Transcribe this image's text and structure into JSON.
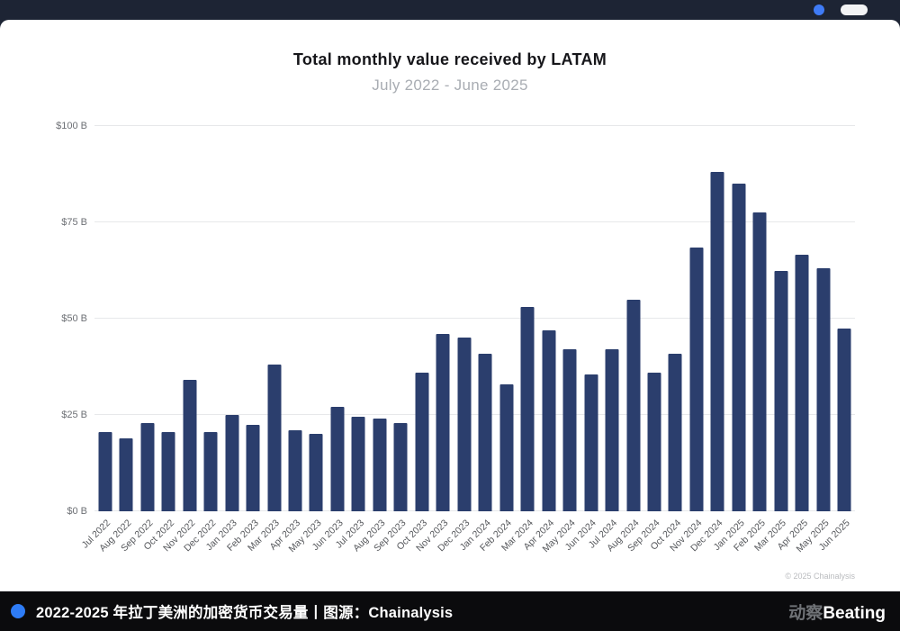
{
  "topbar": {
    "bg": "#1d2434",
    "accent_dot_color": "#3f7bf6"
  },
  "chart_data": {
    "type": "bar",
    "title": "Total monthly value received by LATAM",
    "subtitle": "July 2022 - June 2025",
    "categories": [
      "Jul 2022",
      "Aug 2022",
      "Sep 2022",
      "Oct 2022",
      "Nov 2022",
      "Dec 2022",
      "Jan 2023",
      "Feb 2023",
      "Mar 2023",
      "Apr 2023",
      "May 2023",
      "Jun 2023",
      "Jul 2023",
      "Aug 2023",
      "Sep 2023",
      "Oct 2023",
      "Nov 2023",
      "Dec 2023",
      "Jan 2024",
      "Feb 2024",
      "Mar 2024",
      "Apr 2024",
      "May 2024",
      "Jun 2024",
      "Jul 2024",
      "Aug 2024",
      "Sep 2024",
      "Oct 2024",
      "Nov 2024",
      "Dec 2024",
      "Jan 2025",
      "Feb 2025",
      "Mar 2025",
      "Apr 2025",
      "May 2025",
      "Jun 2025"
    ],
    "values": [
      20.5,
      19,
      23,
      20.5,
      34,
      20.5,
      25,
      22.5,
      38,
      21,
      20,
      27,
      24.5,
      24,
      23,
      36,
      46,
      45,
      41,
      33,
      53,
      47,
      42,
      35.5,
      42,
      55,
      36,
      41,
      68.5,
      88,
      85,
      77.5,
      62.5,
      66.5,
      63,
      47.5
    ],
    "ylim": [
      0,
      100
    ],
    "yticks": [
      0,
      25,
      50,
      75,
      100
    ],
    "ytick_labels": [
      "$0 B",
      "$25 B",
      "$50 B",
      "$75 B",
      "$100 B"
    ],
    "ylabel": "",
    "xlabel": "",
    "grid": true,
    "legend": false,
    "bar_color": "#2b3e6d",
    "source_note": "© 2025 Chainalysis"
  },
  "footer": {
    "caption": "2022-2025 年拉丁美洲的加密货币交易量丨图源：Chainalysis",
    "brand_gray": "动察",
    "brand_white": "Beating",
    "accent_dot_color": "#2e7cf6"
  }
}
